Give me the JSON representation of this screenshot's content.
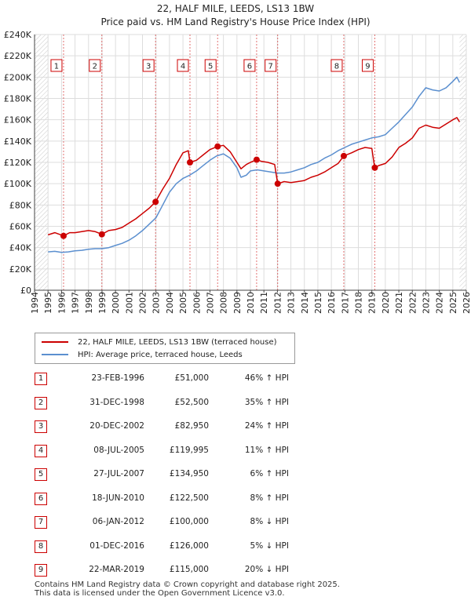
{
  "header": {
    "title": "22, HALF MILE, LEEDS, LS13 1BW",
    "subtitle": "Price paid vs. HM Land Registry's House Price Index (HPI)"
  },
  "chart_data": {
    "type": "line",
    "title": "22, HALF MILE, LEEDS, LS13 1BW",
    "subtitle": "Price paid vs. HM Land Registry's House Price Index (HPI)",
    "xlabel": "",
    "ylabel": "",
    "xlim": [
      1994,
      2026
    ],
    "ylim": [
      0,
      240000
    ],
    "grid": true,
    "y_ticks": [
      0,
      20000,
      40000,
      60000,
      80000,
      100000,
      120000,
      140000,
      160000,
      180000,
      200000,
      220000,
      240000
    ],
    "y_tick_labels": [
      "£0",
      "£20K",
      "£40K",
      "£60K",
      "£80K",
      "£100K",
      "£120K",
      "£140K",
      "£160K",
      "£180K",
      "£200K",
      "£220K",
      "£240K"
    ],
    "x_ticks": [
      1994,
      1995,
      1996,
      1997,
      1998,
      1999,
      2000,
      2001,
      2002,
      2003,
      2004,
      2005,
      2006,
      2007,
      2008,
      2009,
      2010,
      2011,
      2012,
      2013,
      2014,
      2015,
      2016,
      2017,
      2018,
      2019,
      2020,
      2021,
      2022,
      2023,
      2024,
      2025,
      2026
    ],
    "x_tick_labels": [
      "1994",
      "1995",
      "1996",
      "1997",
      "1998",
      "1999",
      "2000",
      "2001",
      "2002",
      "2003",
      "2004",
      "2005",
      "2006",
      "2007",
      "2008",
      "2009",
      "2010",
      "2011",
      "2012",
      "2013",
      "2014",
      "2015",
      "2016",
      "2017",
      "2018",
      "2019",
      "2020",
      "2021",
      "2022",
      "2023",
      "2024",
      "2025",
      "2026"
    ],
    "series": [
      {
        "name": "22, HALF MILE, LEEDS, LS13 1BW (terraced house)",
        "color": "#cc0000",
        "x": [
          1995.0,
          1995.5,
          1996.15,
          1996.6,
          1997.0,
          1997.5,
          1998.0,
          1998.5,
          1998.99,
          1999.5,
          2000.0,
          2000.5,
          2001.0,
          2001.5,
          2002.0,
          2002.5,
          2002.97,
          2003.5,
          2004.0,
          2004.5,
          2005.0,
          2005.4,
          2005.52,
          2006.0,
          2006.5,
          2007.0,
          2007.57,
          2008.0,
          2008.5,
          2009.0,
          2009.3,
          2009.7,
          2010.0,
          2010.46,
          2010.8,
          2011.3,
          2011.8,
          2012.02,
          2012.5,
          2013.0,
          2013.5,
          2014.0,
          2014.5,
          2015.0,
          2015.5,
          2016.0,
          2016.5,
          2016.92,
          2017.5,
          2018.0,
          2018.5,
          2019.0,
          2019.15,
          2019.22,
          2019.5,
          2020.0,
          2020.5,
          2021.0,
          2021.5,
          2022.0,
          2022.5,
          2023.0,
          2023.5,
          2024.0,
          2024.5,
          2025.0,
          2025.3,
          2025.5
        ],
        "values": [
          52000,
          54000,
          51000,
          54000,
          54000,
          55000,
          56000,
          55000,
          52500,
          56000,
          57000,
          59000,
          63000,
          67000,
          72000,
          77000,
          82950,
          95000,
          105000,
          118000,
          129000,
          131000,
          119995,
          122000,
          127000,
          132000,
          134950,
          136000,
          130000,
          120000,
          114000,
          118000,
          120000,
          122500,
          121000,
          120000,
          118000,
          100000,
          102000,
          101000,
          102000,
          103000,
          106000,
          108000,
          111000,
          115000,
          119000,
          126000,
          129000,
          132000,
          134000,
          133000,
          120000,
          115000,
          117000,
          119000,
          125000,
          134000,
          138000,
          143000,
          152000,
          155000,
          153000,
          152000,
          156000,
          160000,
          162000,
          158000
        ]
      },
      {
        "name": "HPI: Average price, terraced house, Leeds",
        "color": "#5b8fcf",
        "x": [
          1995.0,
          1995.5,
          1996.0,
          1996.5,
          1997.0,
          1997.5,
          1998.0,
          1998.5,
          1999.0,
          1999.5,
          2000.0,
          2000.5,
          2001.0,
          2001.5,
          2002.0,
          2002.5,
          2003.0,
          2003.5,
          2004.0,
          2004.5,
          2005.0,
          2005.5,
          2006.0,
          2006.5,
          2007.0,
          2007.5,
          2008.0,
          2008.5,
          2009.0,
          2009.3,
          2009.7,
          2010.0,
          2010.5,
          2011.0,
          2011.5,
          2012.0,
          2012.5,
          2013.0,
          2013.5,
          2014.0,
          2014.5,
          2015.0,
          2015.5,
          2016.0,
          2016.5,
          2017.0,
          2017.5,
          2018.0,
          2018.5,
          2019.0,
          2019.5,
          2020.0,
          2020.5,
          2021.0,
          2021.5,
          2022.0,
          2022.5,
          2023.0,
          2023.5,
          2024.0,
          2024.5,
          2025.0,
          2025.3,
          2025.5
        ],
        "values": [
          36000,
          36500,
          35500,
          36000,
          37000,
          37500,
          38500,
          39000,
          39000,
          40000,
          42000,
          44000,
          47000,
          51000,
          56000,
          62000,
          68000,
          80000,
          92000,
          100000,
          105000,
          108000,
          112000,
          117000,
          122000,
          126000,
          128000,
          124000,
          115000,
          106000,
          108000,
          112000,
          113000,
          112000,
          111000,
          110000,
          110000,
          111000,
          113000,
          115000,
          118000,
          120000,
          124000,
          127000,
          131000,
          134000,
          137000,
          139000,
          141000,
          143000,
          144000,
          146000,
          152000,
          158000,
          165000,
          172000,
          182000,
          190000,
          188000,
          187000,
          190000,
          196000,
          200000,
          195000
        ]
      }
    ],
    "sale_markers": [
      {
        "label": "1",
        "x": 1996.15,
        "value": 51000
      },
      {
        "label": "2",
        "x": 1998.99,
        "value": 52500
      },
      {
        "label": "3",
        "x": 2002.97,
        "value": 82950
      },
      {
        "label": "4",
        "x": 2005.52,
        "value": 119995
      },
      {
        "label": "5",
        "x": 2007.57,
        "value": 134950
      },
      {
        "label": "6",
        "x": 2010.46,
        "value": 122500
      },
      {
        "label": "7",
        "x": 2012.02,
        "value": 100000
      },
      {
        "label": "8",
        "x": 2016.92,
        "value": 126000
      },
      {
        "label": "9",
        "x": 2019.22,
        "value": 115000
      }
    ],
    "marker_color": "#cc0000",
    "hatch_before": 1995.0,
    "hatch_after": 2025.5
  },
  "legend": {
    "items": [
      {
        "label": "22, HALF MILE, LEEDS, LS13 1BW (terraced house)",
        "color": "#cc0000"
      },
      {
        "label": "HPI: Average price, terraced house, Leeds",
        "color": "#5b8fcf"
      }
    ]
  },
  "sales": [
    {
      "num": "1",
      "date": "23-FEB-1996",
      "price": "£51,000",
      "hpi": "46% ↑ HPI"
    },
    {
      "num": "2",
      "date": "31-DEC-1998",
      "price": "£52,500",
      "hpi": "35% ↑ HPI"
    },
    {
      "num": "3",
      "date": "20-DEC-2002",
      "price": "£82,950",
      "hpi": "24% ↑ HPI"
    },
    {
      "num": "4",
      "date": "08-JUL-2005",
      "price": "£119,995",
      "hpi": "11% ↑ HPI"
    },
    {
      "num": "5",
      "date": "27-JUL-2007",
      "price": "£134,950",
      "hpi": "6% ↑ HPI"
    },
    {
      "num": "6",
      "date": "18-JUN-2010",
      "price": "£122,500",
      "hpi": "8% ↑ HPI"
    },
    {
      "num": "7",
      "date": "06-JAN-2012",
      "price": "£100,000",
      "hpi": "8% ↓ HPI"
    },
    {
      "num": "8",
      "date": "01-DEC-2016",
      "price": "£126,000",
      "hpi": "5% ↓ HPI"
    },
    {
      "num": "9",
      "date": "22-MAR-2019",
      "price": "£115,000",
      "hpi": "20% ↓ HPI"
    }
  ],
  "footer": {
    "line1": "Contains HM Land Registry data © Crown copyright and database right 2025.",
    "line2": "This data is licensed under the Open Government Licence v3.0."
  }
}
